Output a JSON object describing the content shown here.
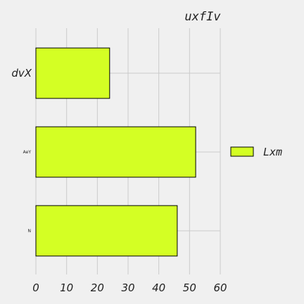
{
  "chart_data": {
    "type": "bar",
    "orientation": "horizontal",
    "title": "uxfIv",
    "xlabel": "",
    "ylabel": "",
    "categories": [
      "dvX",
      "AeY",
      "N"
    ],
    "series": [
      {
        "name": "Lxm",
        "values": [
          24,
          52,
          46
        ],
        "color": "#d4ff24"
      }
    ],
    "xlim": [
      0,
      60
    ],
    "xticks": [
      "0",
      "10",
      "20",
      "30",
      "40",
      "50",
      "60"
    ],
    "grid": true,
    "legend_position": "right",
    "background": "#f0f0f0"
  }
}
